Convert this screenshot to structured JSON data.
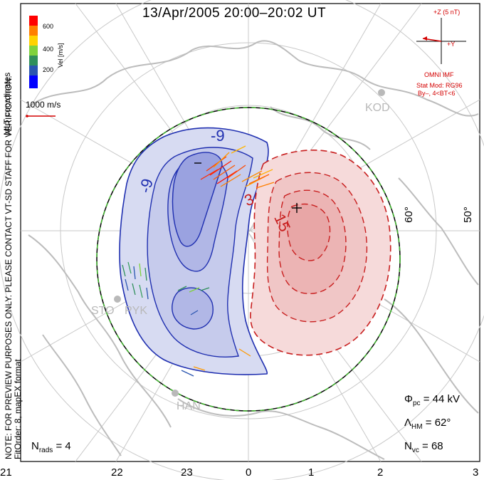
{
  "title": "13/Apr/2005  20:00–20:02  UT",
  "colors": {
    "negative_contour": "#1f2fb0",
    "positive_contour": "#c81e1e",
    "negative_fill": "#c8cceb",
    "positive_fill": "#f4d2d2",
    "boundary_dash": "#3fb52c",
    "map_lines": "#bcbcbc"
  },
  "colorbar": {
    "label": "Vel [m/s]",
    "ticks": [
      "600",
      "400",
      "200"
    ],
    "colors": [
      "#ff0000",
      "#ff7f00",
      "#ffd200",
      "#7fd23c",
      "#2f8f5a",
      "#2a55b0",
      "#0000ff"
    ]
  },
  "coordinates_label": "MLT coordinates",
  "scale_vector_label": "1000 m/s",
  "imf": {
    "bz_label": "+Z (5 nT)",
    "by_label": "+Y",
    "source": "OMNI IMF",
    "model": "Stat Mod: RG96",
    "condition": "By–, 4<BT<6"
  },
  "notes": {
    "preview": "NOTE: FOR PREVIEW PURPOSES ONLY. PLEASE CONTACT VT-SD STAFF FOR VERIFICATION.",
    "fit": "FitOrder: 8,  mapEX format"
  },
  "latitude_labels": [
    "60°",
    "50°"
  ],
  "mlt_ticks": [
    "21",
    "22",
    "23",
    "0",
    "1",
    "2",
    "3"
  ],
  "contour_labels": [
    "-9",
    "-9",
    "3",
    "15"
  ],
  "extrema": {
    "min_marker": "–",
    "max_marker": "+"
  },
  "sites": [
    "KOD",
    "STO",
    "PYK",
    "HAN"
  ],
  "stats": {
    "phi_pc_symbol": "Φ",
    "phi_pc_sub": "pc",
    "phi_pc_value": "44 kV",
    "lambda_hm_symbol": "Λ",
    "lambda_hm_sub": "HM",
    "lambda_hm_value": "62°",
    "n_vc_symbol": "N",
    "n_vc_sub": "vc",
    "n_vc_value": "68",
    "n_rads_symbol": "N",
    "n_rads_sub": "rads",
    "n_rads_value": "4"
  },
  "chart_data": {
    "type": "polar-map",
    "projection": "magnetic north pole, MLT coordinates",
    "potential_pattern": {
      "cross_polar_cap_potential_kV": 44,
      "heppner_maynard_boundary_deg": 62,
      "vector_count": 68,
      "radar_count": 4
    }
  }
}
